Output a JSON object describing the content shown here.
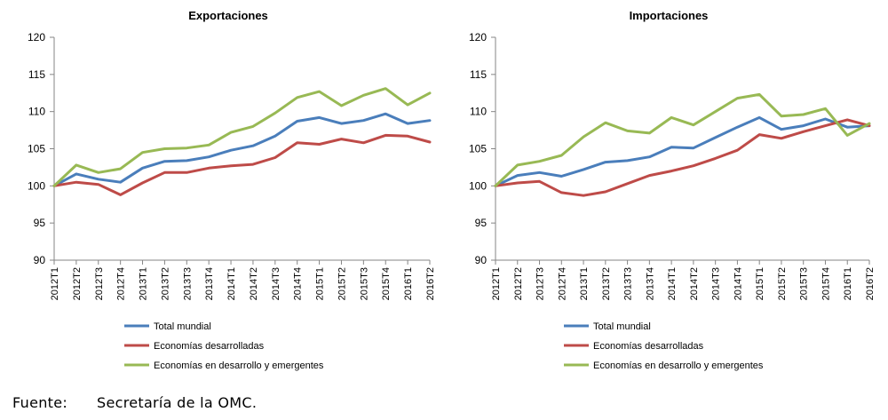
{
  "colors": {
    "total": "#4a7ebb",
    "desarrolladas": "#be4b48",
    "emergentes": "#98b954",
    "axis": "#868686"
  },
  "chart_data": [
    {
      "type": "line",
      "title": "Exportaciones",
      "xlabel": "",
      "ylabel": "",
      "ylim": [
        90,
        120
      ],
      "yticks": [
        "90",
        "95",
        "100",
        "105",
        "110",
        "115",
        "120"
      ],
      "legend_position": "bottom",
      "categories": [
        "2012T1",
        "2012T2",
        "2012T3",
        "2012T4",
        "2013T1",
        "2013T2",
        "2013T3",
        "2013T4",
        "2014T1",
        "2014T2",
        "2014T3",
        "2014T4",
        "2015T1",
        "2015T2",
        "2015T3",
        "2015T4",
        "2016T1",
        "2016T2"
      ],
      "series": [
        {
          "name": "Total mundial",
          "color_key": "total",
          "values": [
            100,
            101.6,
            100.9,
            100.5,
            102.4,
            103.3,
            103.4,
            103.9,
            104.8,
            105.4,
            106.7,
            108.7,
            109.2,
            108.4,
            108.8,
            109.7,
            108.4,
            108.8
          ]
        },
        {
          "name": "Economías desarrolladas",
          "color_key": "desarrolladas",
          "values": [
            100,
            100.5,
            100.2,
            98.8,
            100.4,
            101.8,
            101.8,
            102.4,
            102.7,
            102.9,
            103.8,
            105.8,
            105.6,
            106.3,
            105.8,
            106.8,
            106.7,
            105.9
          ]
        },
        {
          "name": "Economías en desarrollo y emergentes",
          "color_key": "emergentes",
          "values": [
            100,
            102.8,
            101.8,
            102.3,
            104.5,
            105.0,
            105.1,
            105.5,
            107.2,
            108.0,
            109.8,
            111.9,
            112.7,
            110.8,
            112.2,
            113.1,
            110.9,
            112.5
          ]
        }
      ]
    },
    {
      "type": "line",
      "title": "Importaciones",
      "xlabel": "",
      "ylabel": "",
      "ylim": [
        90,
        120
      ],
      "yticks": [
        "90",
        "95",
        "100",
        "105",
        "110",
        "115",
        "120"
      ],
      "legend_position": "bottom",
      "categories": [
        "2012T1",
        "2012T2",
        "2012T3",
        "2012T4",
        "2013T1",
        "2013T2",
        "2013T3",
        "2013T4",
        "2014T1",
        "2014T2",
        "2014T3",
        "2014T4",
        "2015T1",
        "2015T2",
        "2015T3",
        "2015T4",
        "2016T1",
        "2016T2"
      ],
      "series": [
        {
          "name": "Total mundial",
          "color_key": "total",
          "values": [
            100,
            101.4,
            101.8,
            101.3,
            102.2,
            103.2,
            103.4,
            103.9,
            105.2,
            105.1,
            106.5,
            107.9,
            109.2,
            107.6,
            108.1,
            109.0,
            107.9,
            108.1
          ]
        },
        {
          "name": "Economías desarrolladas",
          "color_key": "desarrolladas",
          "values": [
            100,
            100.4,
            100.6,
            99.1,
            98.7,
            99.2,
            100.3,
            101.4,
            102.0,
            102.7,
            103.7,
            104.8,
            106.9,
            106.4,
            107.3,
            108.1,
            108.9,
            108.1
          ]
        },
        {
          "name": "Economías en desarrollo y emergentes",
          "color_key": "emergentes",
          "values": [
            100,
            102.8,
            103.3,
            104.1,
            106.6,
            108.5,
            107.4,
            107.1,
            109.2,
            108.2,
            110.0,
            111.8,
            112.3,
            109.4,
            109.6,
            110.4,
            106.8,
            108.4
          ]
        }
      ]
    }
  ],
  "source": {
    "label": "Fuente:",
    "text": "Secretaría de la OMC."
  }
}
